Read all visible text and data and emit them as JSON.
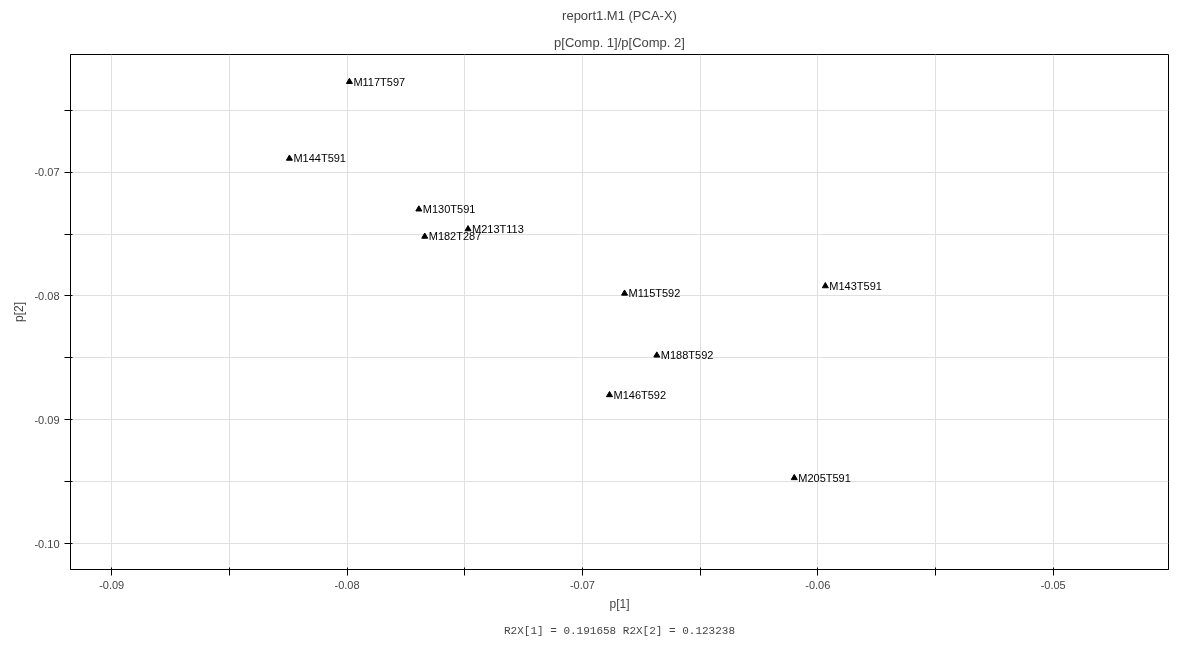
{
  "chart_data": {
    "type": "scatter",
    "title": "report1.M1 (PCA-X)",
    "subtitle": "p[Comp. 1]/p[Comp. 2]",
    "xlabel": "p[1]",
    "ylabel": "p[2]",
    "series": [
      {
        "color": "#000000",
        "x": [
          -0.0799,
          -0.08245,
          -0.07695,
          -0.07486,
          -0.0767,
          -0.06821,
          -0.05968,
          -0.06684,
          -0.06885,
          -0.061
        ],
        "values": [
          -0.0627,
          -0.0689,
          -0.073,
          -0.0746,
          -0.0752,
          -0.0798,
          -0.0792,
          -0.0848,
          -0.088,
          -0.0947
        ],
        "value_labels": [
          "M117T597",
          "M144T591",
          "M130T591",
          "M213T113",
          "M182T287",
          "M115T592",
          "M143T591",
          "M188T592",
          "M146T592",
          "M205T591"
        ]
      }
    ],
    "marker": "triangle",
    "grid": true,
    "xlim": [
      -0.09175,
      -0.0451
    ],
    "ylim": [
      -0.1021,
      -0.0605
    ],
    "xticks": [
      -0.09,
      {
        "value": -0.085,
        "label": null
      },
      -0.08,
      {
        "value": -0.075,
        "label": null
      },
      -0.07,
      {
        "value": -0.065,
        "label": null
      },
      -0.06,
      {
        "value": -0.055,
        "label": null
      },
      -0.05
    ],
    "yticks": [
      {
        "value": -0.1,
        "label": "-0.10"
      },
      {
        "value": -0.095,
        "label": null
      },
      -0.09,
      {
        "value": -0.085,
        "label": null
      },
      -0.08,
      {
        "value": -0.075,
        "label": null
      },
      -0.07,
      {
        "value": -0.065,
        "label": null
      }
    ],
    "annotations": [
      "R2X[1] = 0.191658 R2X[2] = 0.123238"
    ]
  }
}
